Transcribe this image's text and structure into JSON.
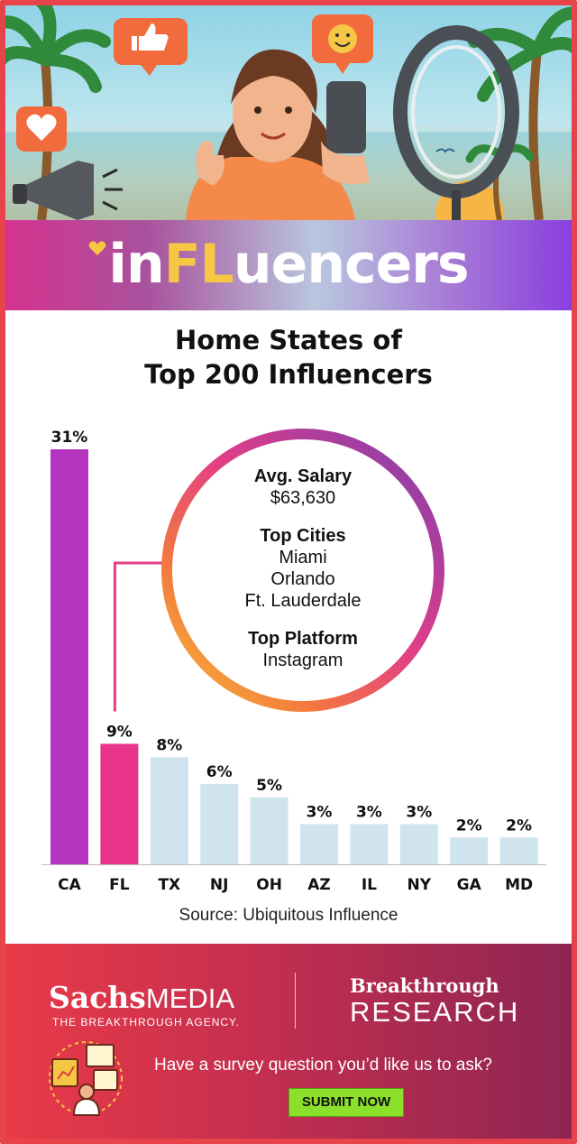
{
  "brand": {
    "prefix": "in",
    "highlight": "FL",
    "suffix": "uencers"
  },
  "chart_data": {
    "type": "bar",
    "title_line1": "Home States of",
    "title_line2": "Top 200 Influencers",
    "categories": [
      "CA",
      "FL",
      "TX",
      "NJ",
      "OH",
      "AZ",
      "IL",
      "NY",
      "GA",
      "MD"
    ],
    "values": [
      31,
      9,
      8,
      6,
      5,
      3,
      3,
      3,
      2,
      2
    ],
    "value_labels": [
      "31%",
      "9%",
      "8%",
      "6%",
      "5%",
      "3%",
      "3%",
      "3%",
      "2%",
      "2%"
    ],
    "unit": "%",
    "ylim": [
      0,
      31
    ],
    "grid": false,
    "colors": {
      "CA": "#b535c0",
      "FL": "#e8338a",
      "other": "#cfe4ef"
    },
    "source": "Source: Ubiquitous Influence",
    "callout": {
      "state": "FL",
      "salary_label": "Avg. Salary",
      "salary_value": "$63,630",
      "cities_label": "Top Cities",
      "cities": [
        "Miami",
        "Orlando",
        "Ft. Lauderdale"
      ],
      "platform_label": "Top Platform",
      "platform_value": "Instagram"
    }
  },
  "footer": {
    "sachs_bold": "Sachs",
    "sachs_light": "MEDIA",
    "sachs_tagline": "THE BREAKTHROUGH AGENCY.",
    "breakthrough": "Breakthrough",
    "research": "RESEARCH",
    "prompt": "Have a survey question you’d like us to ask?",
    "submit_label": "SUBMIT NOW"
  },
  "icons": [
    "heart-icon",
    "thumbs-up-icon",
    "smiley-icon",
    "megaphone-icon",
    "ring-light-icon",
    "survey-icon"
  ]
}
